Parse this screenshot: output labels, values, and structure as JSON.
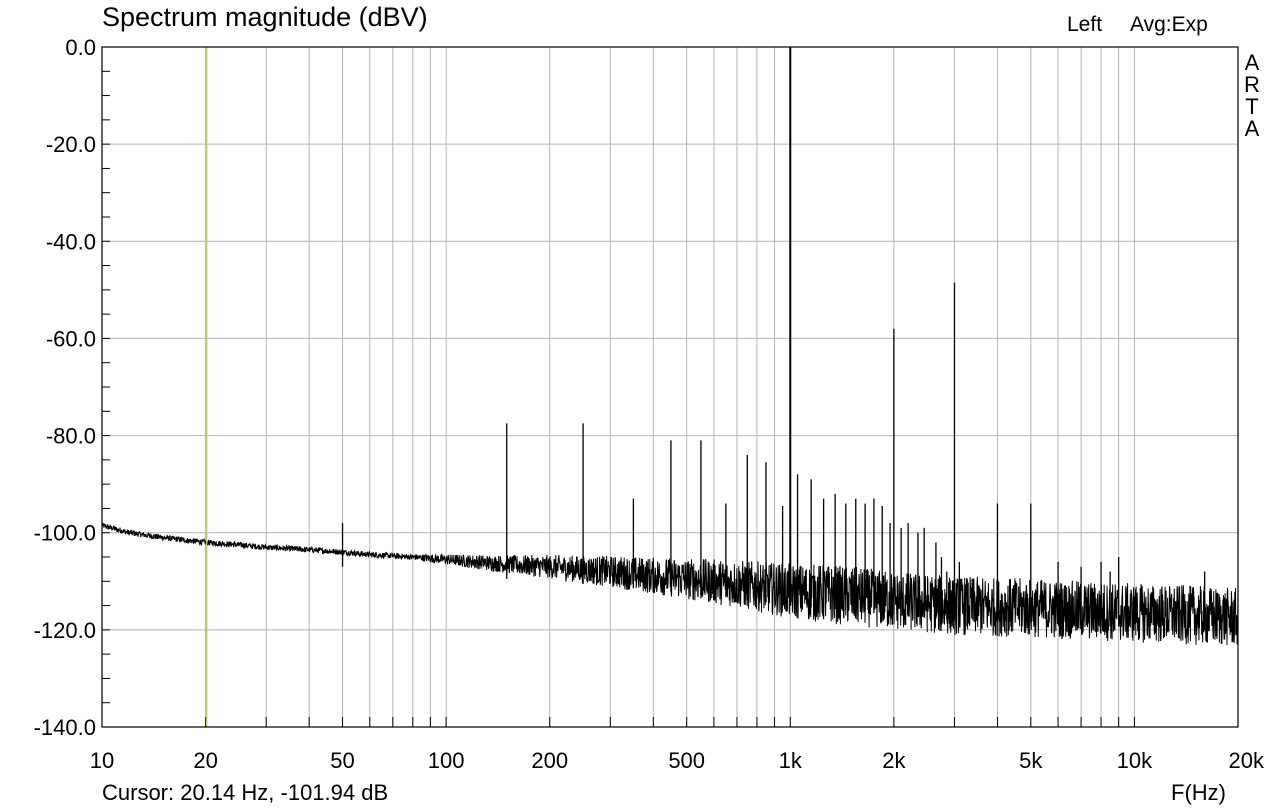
{
  "header": {
    "title": "Spectrum magnitude (dBV)",
    "channel": "Left",
    "averaging": "Avg:Exp"
  },
  "brand": [
    "A",
    "R",
    "T",
    "A"
  ],
  "footer": {
    "cursor_readout": "Cursor: 20.14 Hz, -101.94 dB",
    "x_unit": "F(Hz)"
  },
  "colors": {
    "trace": "#000000",
    "grid": "#b4b4b4",
    "cursor": "#c8c864",
    "frame": "#000000"
  },
  "chart_data": {
    "type": "line",
    "title": "Spectrum magnitude (dBV)",
    "xlabel": "F(Hz)",
    "ylabel": "",
    "x_scale": "log",
    "xlim": [
      10,
      20000
    ],
    "ylim": [
      -140,
      0
    ],
    "grid": true,
    "y_ticks": [
      0,
      -20,
      -40,
      -60,
      -80,
      -100,
      -120,
      -140
    ],
    "y_tick_labels": [
      "0.0",
      "-20.0",
      "-40.0",
      "-60.0",
      "-80.0",
      "-100.0",
      "-120.0",
      "-140.0"
    ],
    "x_ticks": [
      10,
      20,
      50,
      100,
      200,
      500,
      1000,
      2000,
      5000,
      10000,
      20000
    ],
    "x_tick_labels": [
      "10",
      "20",
      "50",
      "100",
      "200",
      "500",
      "1k",
      "2k",
      "5k",
      "10k",
      "20k"
    ],
    "cursor": {
      "freq_hz": 20.14,
      "level_db": -101.94
    },
    "noise_floor": {
      "x": [
        10,
        12,
        15,
        20,
        25,
        30,
        40,
        50,
        60,
        80,
        100,
        150,
        200,
        300,
        500,
        700,
        1000,
        1500,
        2000,
        3000,
        5000,
        7000,
        10000,
        15000,
        20000
      ],
      "y": [
        -98.5,
        -100.0,
        -101.0,
        -102.0,
        -102.5,
        -103.0,
        -103.5,
        -104.0,
        -104.5,
        -105.0,
        -105.5,
        -106.5,
        -107.0,
        -108.0,
        -109.5,
        -110.5,
        -112.0,
        -113.0,
        -114.0,
        -115.0,
        -115.5,
        -116.0,
        -116.5,
        -117.0,
        -117.5
      ]
    },
    "peaks": {
      "x": [
        50,
        150,
        250,
        350,
        450,
        550,
        650,
        750,
        850,
        950,
        1000,
        1050,
        1150,
        1250,
        1350,
        1450,
        1550,
        1650,
        1750,
        1850,
        1950,
        2000,
        2100,
        2200,
        2350,
        2450,
        2650,
        2750,
        2850,
        3000,
        3100,
        4000,
        5000,
        6000,
        7000,
        8000,
        8500,
        9000,
        16000
      ],
      "y": [
        -98,
        -77.5,
        -77.5,
        -93,
        -81,
        -81,
        -94,
        -84,
        -85.5,
        -94.5,
        0,
        -88,
        -89,
        -93,
        -92,
        -94,
        -93,
        -94,
        -93,
        -94.5,
        -98,
        -58,
        -99,
        -98,
        -100,
        -99,
        -102,
        -105,
        -108,
        -48.5,
        -106,
        -94,
        -94,
        -106,
        -107,
        -106,
        -108,
        -105,
        -108
      ]
    }
  }
}
